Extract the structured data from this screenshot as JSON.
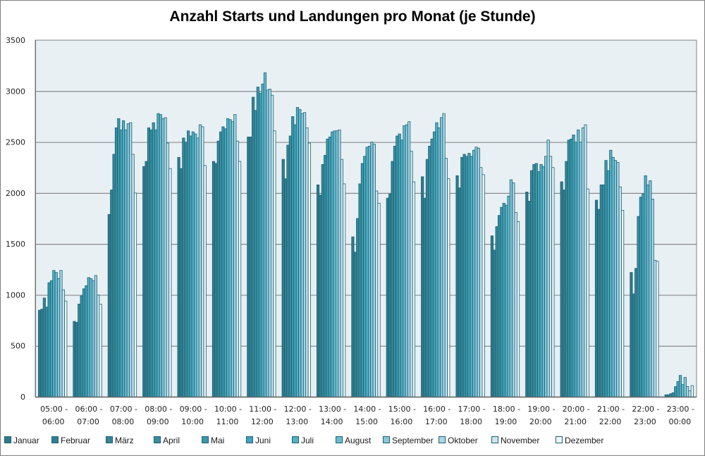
{
  "chart_data": {
    "type": "bar",
    "title": "Anzahl Starts und Landungen pro Monat (je Stunde)",
    "xlabel": "",
    "ylabel": "",
    "ylim": [
      0,
      3500
    ],
    "yticks": [
      0,
      500,
      1000,
      1500,
      2000,
      2500,
      3000,
      3500
    ],
    "ytick_labels": [
      "0",
      "500",
      "1000",
      "1500",
      "2000",
      "2500",
      "3000",
      "3500"
    ],
    "grid": true,
    "legend_position": "bottom",
    "categories": [
      [
        "05:00 -",
        "06:00"
      ],
      [
        "06:00 -",
        "07:00"
      ],
      [
        "07:00 -",
        "08:00"
      ],
      [
        "08:00 -",
        "09:00"
      ],
      [
        "09:00 -",
        "10:00"
      ],
      [
        "10:00 -",
        "11:00"
      ],
      [
        "11:00 -",
        "12:00"
      ],
      [
        "12:00 -",
        "13:00"
      ],
      [
        "13:00 -",
        "14:00"
      ],
      [
        "14:00 -",
        "15:00"
      ],
      [
        "15:00 -",
        "16:00"
      ],
      [
        "16:00 -",
        "17:00"
      ],
      [
        "17:00 -",
        "18:00"
      ],
      [
        "18:00 -",
        "19:00"
      ],
      [
        "19:00 -",
        "20:00"
      ],
      [
        "20:00 -",
        "21:00"
      ],
      [
        "21:00 -",
        "22:00"
      ],
      [
        "22:00 -",
        "23:00"
      ],
      [
        "23:00 -",
        "00:00"
      ]
    ],
    "series": [
      {
        "name": "Januar",
        "color": "#2f7a8c",
        "values": [
          850,
          740,
          1790,
          2260,
          2350,
          2310,
          2550,
          2330,
          2080,
          1570,
          1950,
          2160,
          2170,
          1580,
          2010,
          2110,
          1930,
          1220,
          20
        ]
      },
      {
        "name": "Februar",
        "color": "#327f91",
        "values": [
          860,
          730,
          2030,
          2310,
          2240,
          2290,
          2550,
          2140,
          1980,
          1420,
          1990,
          1950,
          2050,
          1440,
          1920,
          2030,
          1840,
          1010,
          20
        ]
      },
      {
        "name": "März",
        "color": "#358797",
        "values": [
          970,
          910,
          2380,
          2640,
          2540,
          2510,
          2940,
          2470,
          2280,
          1750,
          2310,
          2330,
          2350,
          1670,
          2220,
          2310,
          2080,
          1260,
          30
        ]
      },
      {
        "name": "April",
        "color": "#388e9f",
        "values": [
          880,
          990,
          2640,
          2620,
          2500,
          2600,
          2810,
          2560,
          2370,
          2090,
          2460,
          2460,
          2380,
          1780,
          2280,
          2520,
          2080,
          1770,
          40
        ]
      },
      {
        "name": "Mai",
        "color": "#3c97a8",
        "values": [
          1120,
          1060,
          2730,
          2690,
          2610,
          2650,
          3040,
          2750,
          2530,
          2290,
          2560,
          2530,
          2360,
          1860,
          2290,
          2530,
          2320,
          1960,
          100
        ]
      },
      {
        "name": "Juni",
        "color": "#45a3b6",
        "values": [
          1140,
          1090,
          2620,
          2620,
          2560,
          2630,
          2980,
          2670,
          2550,
          2360,
          2580,
          2600,
          2390,
          1900,
          2210,
          2570,
          2220,
          1990,
          150
        ]
      },
      {
        "name": "Juli",
        "color": "#55afc3",
        "values": [
          1240,
          1170,
          2710,
          2780,
          2600,
          2730,
          3070,
          2840,
          2600,
          2450,
          2520,
          2690,
          2360,
          1880,
          2280,
          2500,
          2420,
          2170,
          210
        ]
      },
      {
        "name": "August",
        "color": "#6cbad0",
        "values": [
          1220,
          1160,
          2620,
          2770,
          2580,
          2720,
          3180,
          2820,
          2610,
          2460,
          2660,
          2640,
          2420,
          1970,
          2260,
          2620,
          2350,
          2080,
          120
        ]
      },
      {
        "name": "September",
        "color": "#88c7d9",
        "values": [
          1160,
          1140,
          2680,
          2730,
          2540,
          2700,
          3010,
          2780,
          2610,
          2500,
          2670,
          2740,
          2450,
          2130,
          2360,
          2500,
          2320,
          2120,
          190
        ]
      },
      {
        "name": "Oktober",
        "color": "#a9d6e4",
        "values": [
          1240,
          1190,
          2690,
          2740,
          2670,
          2770,
          3020,
          2790,
          2620,
          2480,
          2700,
          2780,
          2440,
          2100,
          2520,
          2640,
          2300,
          1940,
          100
        ]
      },
      {
        "name": "November",
        "color": "#cbe6ef",
        "values": [
          1050,
          1000,
          2380,
          2490,
          2650,
          2510,
          2960,
          2640,
          2330,
          2020,
          2410,
          2340,
          2250,
          1810,
          2360,
          2670,
          2060,
          1340,
          60
        ]
      },
      {
        "name": "Dezember",
        "color": "#eef7fa",
        "values": [
          940,
          910,
          2000,
          2240,
          2270,
          2310,
          2610,
          2490,
          2090,
          1900,
          2110,
          2140,
          2180,
          1720,
          2250,
          2040,
          1830,
          1330,
          110
        ]
      }
    ]
  }
}
